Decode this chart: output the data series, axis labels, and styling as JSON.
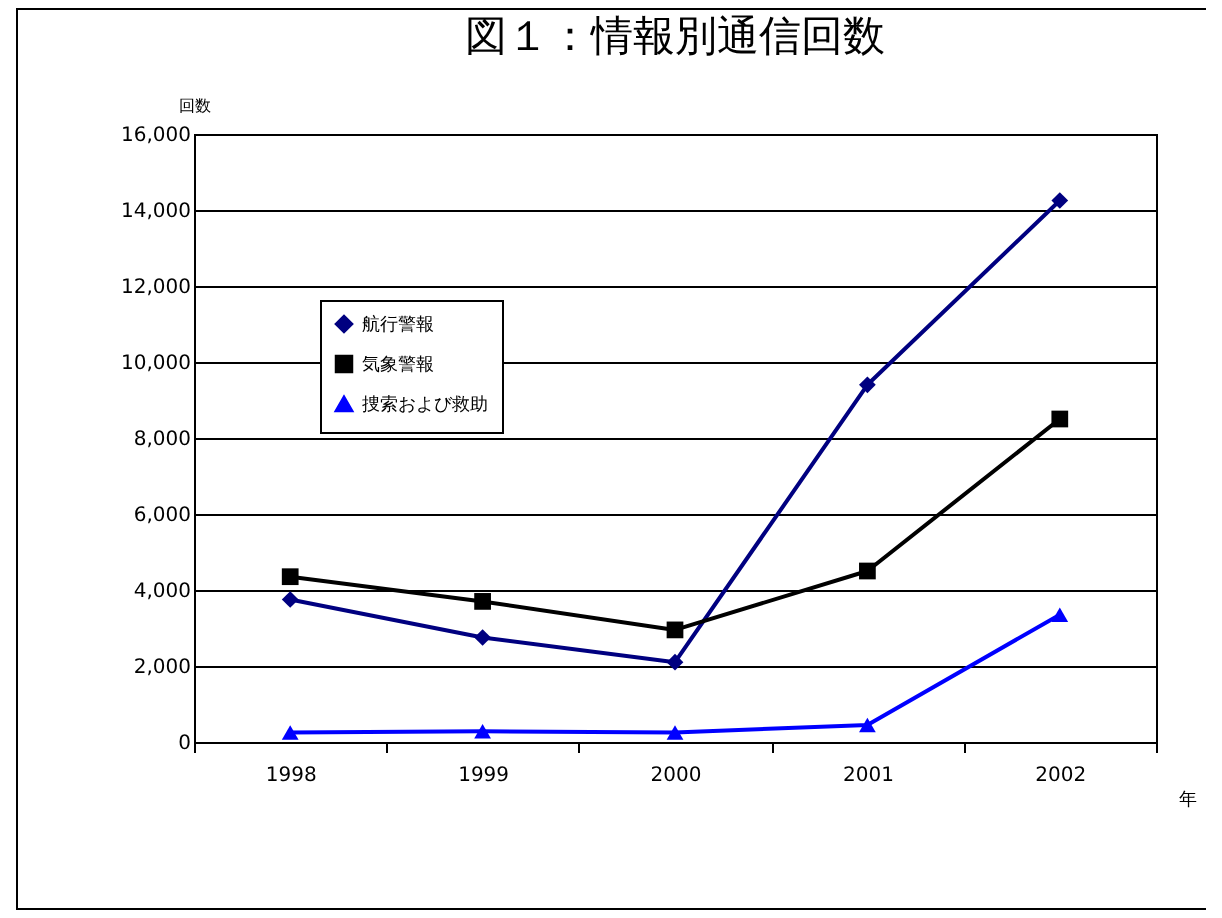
{
  "chart_data": {
    "type": "line",
    "title": "図１：情報別通信回数",
    "xlabel": "年",
    "ylabel": "回数",
    "categories": [
      "1998",
      "1999",
      "2000",
      "2001",
      "2002"
    ],
    "series": [
      {
        "name": "航行警報",
        "color": "#000080",
        "marker": "diamond",
        "values": [
          3750,
          2750,
          2100,
          9400,
          14250
        ]
      },
      {
        "name": "気象警報",
        "color": "#000000",
        "marker": "square",
        "values": [
          4350,
          3700,
          2950,
          4500,
          8500
        ]
      },
      {
        "name": "捜索および救助",
        "color": "#0000ff",
        "marker": "triangle",
        "values": [
          250,
          280,
          250,
          450,
          3350
        ]
      }
    ],
    "ylim": [
      0,
      16000
    ],
    "yticks": [
      0,
      {
        "value": 2000,
        "label": "2,000"
      },
      {
        "value": 4000,
        "label": "4,000"
      },
      {
        "value": 6000,
        "label": "6,000"
      },
      {
        "value": 8000,
        "label": "8,000"
      },
      {
        "value": 10000,
        "label": "10,000"
      },
      {
        "value": 12000,
        "label": "12,000"
      },
      {
        "value": 14000,
        "label": "14,000"
      },
      {
        "value": 16000,
        "label": "16,000"
      }
    ],
    "grid": "y",
    "legend": "top left"
  }
}
